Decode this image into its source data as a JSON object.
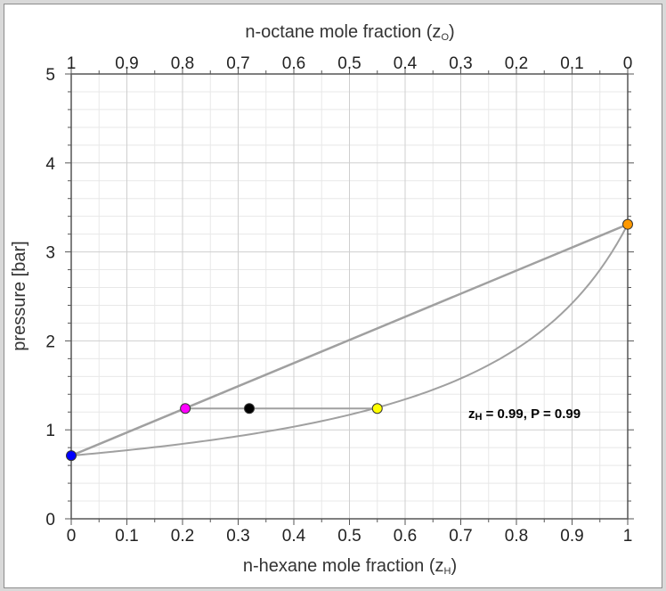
{
  "chart_data": {
    "type": "scatter",
    "xlabel_bottom": "n-hexane mole fraction (z",
    "xlabel_bottom_sub": "H",
    "xlabel_bottom_end": ")",
    "xlabel_top": "n-octane mole fraction (z",
    "xlabel_top_sub": "O",
    "xlabel_top_end": ")",
    "ylabel": "pressure [bar]",
    "xlim": [
      0,
      1
    ],
    "ylim": [
      0,
      5
    ],
    "x_ticks": [
      0,
      0.1,
      0.2,
      0.3,
      0.4,
      0.5,
      0.6,
      0.7,
      0.8,
      0.9,
      1
    ],
    "x_tick_labels": [
      "0",
      "0.1",
      "0.2",
      "0.3",
      "0.4",
      "0.5",
      "0.6",
      "0.7",
      "0.8",
      "0.9",
      "1"
    ],
    "top_tick_labels": [
      "1",
      "0.9",
      "0.8",
      "0.7",
      "0.6",
      "0.5",
      "0.4",
      "0.3",
      "0.2",
      "0.1",
      "0"
    ],
    "y_ticks": [
      0,
      1,
      2,
      3,
      4,
      5
    ],
    "y_tick_labels": [
      "0",
      "1",
      "2",
      "3",
      "4",
      "5"
    ],
    "grid": true,
    "pure_octane_pressure": 0.71,
    "pure_hexane_pressure": 3.31,
    "tie_line_pressure": 1.24,
    "points": [
      {
        "name": "pure n-octane",
        "x": 0.0,
        "y": 0.71,
        "color": "#0000ff"
      },
      {
        "name": "liquid composition",
        "x": 0.205,
        "y": 1.24,
        "color": "#ff00ff"
      },
      {
        "name": "overall composition",
        "x": 0.32,
        "y": 1.24,
        "color": "#000000"
      },
      {
        "name": "vapor composition",
        "x": 0.55,
        "y": 1.24,
        "color": "#ffff00"
      },
      {
        "name": "pure n-hexane",
        "x": 1.0,
        "y": 3.31,
        "color": "#ff9900"
      }
    ],
    "readout": {
      "prefix": "z",
      "sub": "H",
      "text": " = 0.99, P = 0.99"
    }
  }
}
